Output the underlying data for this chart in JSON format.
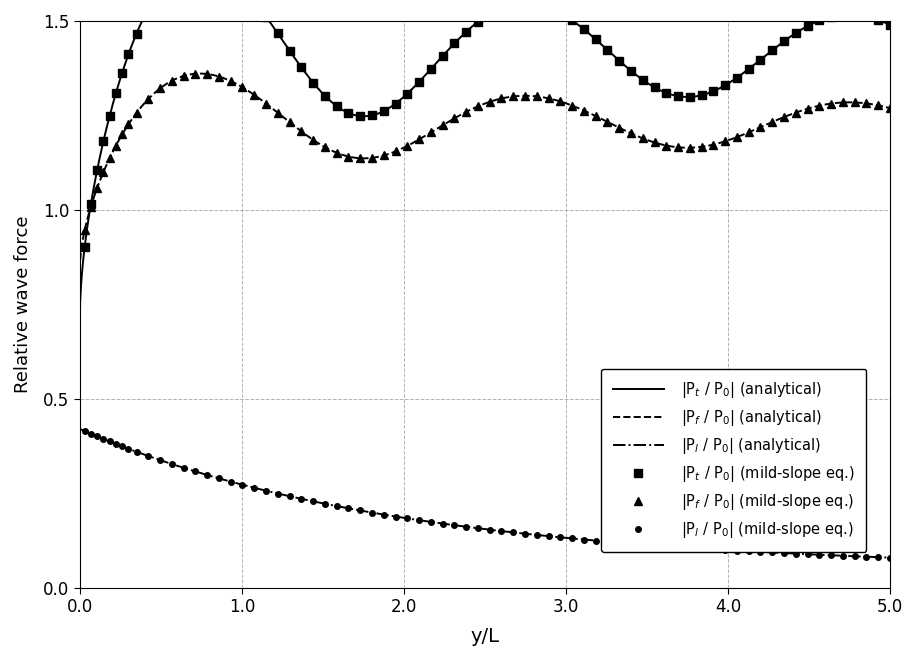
{
  "xlabel": "y/L",
  "ylabel": "Relative wave force",
  "xlim": [
    0.0,
    5.0
  ],
  "ylim": [
    0.0,
    1.5
  ],
  "xticks": [
    0.0,
    1.0,
    2.0,
    3.0,
    4.0,
    5.0
  ],
  "yticks": [
    0.0,
    0.5,
    1.0,
    1.5
  ],
  "legend_labels_lines": [
    "|P$_t$ / P$_0$| (analytical)",
    "|P$_f$ / P$_0$| (analytical)",
    "|P$_l$ / P$_0$| (analytical)"
  ],
  "legend_labels_markers": [
    "|P$_t$ / P$_0$| (mild-slope eq.)",
    "|P$_f$ / P$_0$| (mild-slope eq.)",
    "|P$_l$ / P$_0$| (mild-slope eq.)"
  ],
  "grid_color": "#aaaaaa",
  "background_color": "#ffffff",
  "fontsize": 13
}
